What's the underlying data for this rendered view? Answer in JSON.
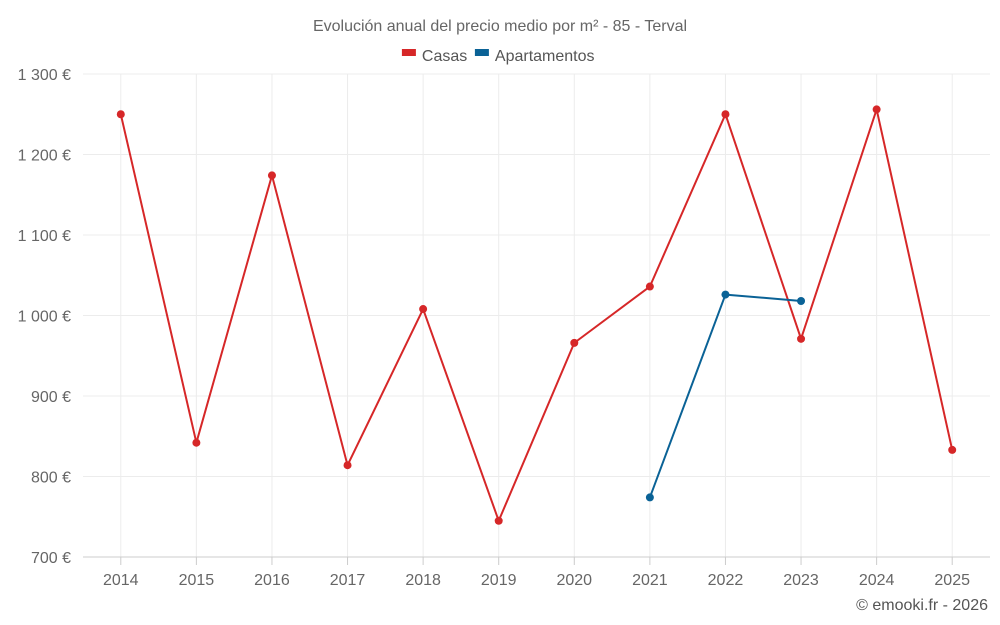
{
  "chart_data": {
    "type": "line",
    "title": "Evolución anual del precio medio por m² - 85 - Terval",
    "categories": [
      "2014",
      "2015",
      "2016",
      "2017",
      "2018",
      "2019",
      "2020",
      "2021",
      "2022",
      "2023",
      "2024",
      "2025"
    ],
    "ylim": [
      700,
      1300
    ],
    "yticks": [
      700,
      800,
      900,
      1000,
      1100,
      1200,
      1300
    ],
    "ytick_labels": [
      "700 €",
      "800 €",
      "900 €",
      "1 000 €",
      "1 100 €",
      "1 200 €",
      "1 300 €"
    ],
    "grid": true,
    "legend_position": "top-center",
    "series": [
      {
        "name": "Casas",
        "color": "#d62728",
        "values": [
          1250,
          842,
          1174,
          814,
          1008,
          745,
          966,
          1036,
          1250,
          971,
          1256,
          833
        ]
      },
      {
        "name": "Apartamentos",
        "color": "#0a6296",
        "values": [
          null,
          null,
          null,
          null,
          null,
          null,
          null,
          774,
          1026,
          1018,
          null,
          null
        ]
      }
    ]
  },
  "credit": "© emooki.fr - 2026"
}
